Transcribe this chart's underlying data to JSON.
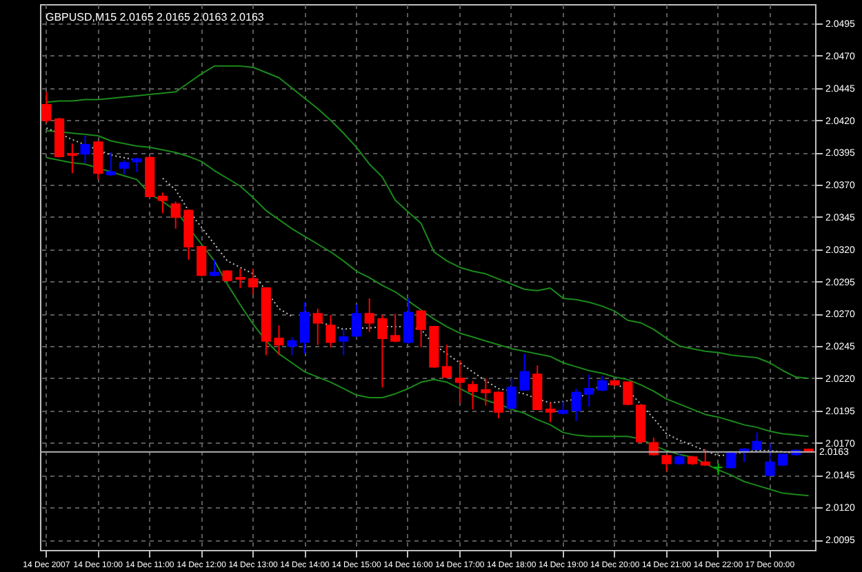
{
  "chart_data": {
    "type": "candlestick",
    "title": "GBPUSD,M15  2.0165 2.0165 2.0163 2.0163",
    "categories": [
      "14 Dec 2007",
      null,
      null,
      null,
      "14 Dec 10:00",
      null,
      null,
      null,
      "14 Dec 11:00",
      null,
      null,
      null,
      "14 Dec 12:00",
      null,
      null,
      null,
      "14 Dec 13:00",
      null,
      null,
      null,
      "14 Dec 14:00",
      null,
      null,
      null,
      "14 Dec 15:00",
      null,
      null,
      null,
      "14 Dec 16:00",
      null,
      null,
      null,
      "14 Dec 17:00",
      null,
      null,
      null,
      "14 Dec 18:00",
      null,
      null,
      null,
      "14 Dec 19:00",
      null,
      null,
      null,
      "14 Dec 20:00",
      null,
      null,
      null,
      "14 Dec 21:00",
      null,
      null,
      null,
      "14 Dec 22:00",
      null,
      null,
      null,
      "17 Dec 00:00",
      null,
      null,
      null
    ],
    "ohlc": [
      [
        2.0432,
        2.0442,
        2.0418,
        2.042
      ],
      [
        2.0421,
        2.0422,
        2.0391,
        2.0392
      ],
      [
        2.0394,
        2.0402,
        2.0379,
        2.0393
      ],
      [
        2.0394,
        2.0408,
        2.0387,
        2.0401
      ],
      [
        2.0403,
        2.0404,
        2.0374,
        2.0379
      ],
      [
        2.0378,
        2.0395,
        2.0377,
        2.038
      ],
      [
        2.0383,
        2.0389,
        2.0378,
        2.0387
      ],
      [
        2.0388,
        2.0391,
        2.038,
        2.039
      ],
      [
        2.0391,
        2.0392,
        2.036,
        2.0361
      ],
      [
        2.0361,
        2.0364,
        2.0348,
        2.0358
      ],
      [
        2.0355,
        2.0357,
        2.0336,
        2.0345
      ],
      [
        2.035,
        2.0351,
        2.0312,
        2.0322
      ],
      [
        2.0322,
        2.0323,
        2.0299,
        2.03
      ],
      [
        2.03,
        2.0312,
        2.0299,
        2.0302
      ],
      [
        2.0303,
        2.0304,
        2.0295,
        2.0296
      ],
      [
        2.0298,
        2.0305,
        2.029,
        2.0297
      ],
      [
        2.0297,
        2.0305,
        2.0285,
        2.0291
      ],
      [
        2.029,
        2.029,
        2.0238,
        2.0249
      ],
      [
        2.0251,
        2.0261,
        2.0238,
        2.0246
      ],
      [
        2.0245,
        2.0252,
        2.0238,
        2.0249
      ],
      [
        2.0248,
        2.0279,
        2.0239,
        2.0271
      ],
      [
        2.027,
        2.0274,
        2.0246,
        2.0263
      ],
      [
        2.0261,
        2.0269,
        2.0244,
        2.0248
      ],
      [
        2.0249,
        2.0258,
        2.0238,
        2.0252
      ],
      [
        2.0253,
        2.0277,
        2.0252,
        2.027
      ],
      [
        2.027,
        2.0282,
        2.0256,
        2.0263
      ],
      [
        2.0266,
        2.0269,
        2.0213,
        2.0251
      ],
      [
        2.0253,
        2.027,
        2.0248,
        2.0249
      ],
      [
        2.0248,
        2.0282,
        2.0247,
        2.0271
      ],
      [
        2.0272,
        2.0273,
        2.0244,
        2.0258
      ],
      [
        2.026,
        2.026,
        2.0228,
        2.0229
      ],
      [
        2.0229,
        2.0246,
        2.022,
        2.0221
      ],
      [
        2.022,
        2.0234,
        2.0201,
        2.0217
      ],
      [
        2.0215,
        2.0218,
        2.0196,
        2.021
      ],
      [
        2.0211,
        2.022,
        2.0199,
        2.0209
      ],
      [
        2.0209,
        2.021,
        2.0189,
        2.0194
      ],
      [
        2.0197,
        2.022,
        2.0196,
        2.0213
      ],
      [
        2.0211,
        2.0239,
        2.0211,
        2.0225
      ],
      [
        2.0223,
        2.023,
        2.0196,
        2.0196
      ],
      [
        2.0196,
        2.0201,
        2.0186,
        2.0194
      ],
      [
        2.0193,
        2.0202,
        2.0192,
        2.0195
      ],
      [
        2.0195,
        2.0212,
        2.0187,
        2.0209
      ],
      [
        2.0208,
        2.0223,
        2.0198,
        2.0212
      ],
      [
        2.0211,
        2.0222,
        2.021,
        2.0218
      ],
      [
        2.0218,
        2.0218,
        2.0214,
        2.0215
      ],
      [
        2.0217,
        2.0217,
        2.0199,
        2.02
      ],
      [
        2.0199,
        2.02,
        2.017,
        2.0171
      ],
      [
        2.017,
        2.0174,
        2.016,
        2.0161
      ],
      [
        2.016,
        2.0161,
        2.0148,
        2.0154
      ],
      [
        2.0154,
        2.0163,
        2.0153,
        2.0159
      ],
      [
        2.0159,
        2.016,
        2.0153,
        2.0154
      ],
      [
        2.0155,
        2.0165,
        2.0152,
        2.0153
      ],
      [
        2.0151,
        2.0154,
        2.0145,
        2.0151
      ],
      [
        2.0151,
        2.0163,
        2.015,
        2.0162
      ],
      [
        2.0163,
        2.0166,
        2.0155,
        2.0165
      ],
      [
        2.0165,
        2.0178,
        2.0164,
        2.0171
      ],
      [
        2.0145,
        2.017,
        2.0144,
        2.0155
      ],
      [
        2.0153,
        2.0161,
        2.0152,
        2.0161
      ],
      [
        2.0161,
        2.0165,
        2.016,
        2.0164
      ],
      [
        2.0165,
        2.0165,
        2.0163,
        2.0163
      ]
    ],
    "colors": [
      "#ff0000",
      "#ff0000",
      "#ff0000",
      "#0000ff",
      "#ff0000",
      "#0000ff",
      "#0000ff",
      "#0000ff",
      "#ff0000",
      "#ff0000",
      "#ff0000",
      "#ff0000",
      "#ff0000",
      "#0000ff",
      "#ff0000",
      "#ff0000",
      "#ff0000",
      "#ff0000",
      "#ff0000",
      "#0000ff",
      "#0000ff",
      "#ff0000",
      "#ff0000",
      "#0000ff",
      "#0000ff",
      "#ff0000",
      "#ff0000",
      "#ff0000",
      "#0000ff",
      "#ff0000",
      "#ff0000",
      "#ff0000",
      "#ff0000",
      "#ff0000",
      "#ff0000",
      "#ff0000",
      "#0000ff",
      "#0000ff",
      "#ff0000",
      "#ff0000",
      "#0000ff",
      "#0000ff",
      "#0000ff",
      "#0000ff",
      "#ff0000",
      "#ff0000",
      "#ff0000",
      "#ff0000",
      "#ff0000",
      "#0000ff",
      "#ff0000",
      "#ff0000",
      "#00c000",
      "#0000ff",
      "#0000ff",
      "#0000ff",
      "#0000ff",
      "#0000ff",
      "#0000ff",
      "#ff0000"
    ],
    "series": [
      {
        "type": "line",
        "color": "#1b8a1b",
        "line_style": "solid",
        "values": [
          2.0434,
          2.0435,
          2.0435,
          2.0436,
          2.0436,
          2.0437,
          2.0438,
          2.0439,
          2.044,
          2.0441,
          2.0442,
          2.0449,
          2.0456,
          2.0462,
          2.0462,
          2.0462,
          2.0461,
          2.0457,
          2.0453,
          2.0445,
          2.0437,
          2.0429,
          2.042,
          2.041,
          2.0399,
          2.0386,
          2.0376,
          2.0358,
          2.0349,
          2.034,
          2.0318,
          2.0311,
          2.0306,
          2.0303,
          2.0301,
          2.0297,
          2.0293,
          2.0289,
          2.0288,
          2.029,
          2.0282,
          2.0281,
          2.0279,
          2.0276,
          2.0272,
          2.0265,
          2.0263,
          2.0258,
          2.0251,
          2.0245,
          2.0243,
          2.0241,
          2.024,
          2.0238,
          2.0237,
          2.0236,
          2.0232,
          2.0226,
          2.0221,
          2.022
        ]
      },
      {
        "type": "line",
        "color": "#1b8a1b",
        "line_style": "solid",
        "values": [
          2.0412,
          2.0411,
          2.041,
          2.0409,
          2.0408,
          2.0404,
          2.0402,
          2.04,
          2.0399,
          2.0397,
          2.0395,
          2.0392,
          2.0388,
          2.0381,
          2.0375,
          2.0369,
          2.036,
          2.035,
          2.0343,
          2.0336,
          2.033,
          2.0324,
          2.0318,
          2.0311,
          2.0303,
          2.0298,
          2.0292,
          2.0287,
          2.028,
          2.0273,
          2.0266,
          2.026,
          2.0255,
          2.0252,
          2.0249,
          2.0246,
          2.0243,
          2.0241,
          2.0239,
          2.0237,
          2.0232,
          2.0229,
          2.0226,
          2.0224,
          2.0221,
          2.0219,
          2.0215,
          2.021,
          2.0204,
          2.02,
          2.0196,
          2.0192,
          2.019,
          2.0187,
          2.0184,
          2.0182,
          2.0179,
          2.0177,
          2.0176,
          2.0175
        ]
      },
      {
        "type": "line",
        "color": "#1b8a1b",
        "line_style": "solid",
        "values": [
          2.0391,
          2.0389,
          2.0387,
          2.0386,
          2.0383,
          2.038,
          2.0377,
          2.0374,
          2.0363,
          2.0357,
          2.035,
          2.0337,
          2.0324,
          2.0311,
          2.0293,
          2.0277,
          2.0262,
          2.0249,
          2.0239,
          2.0232,
          2.0225,
          2.0221,
          2.0217,
          2.0212,
          2.0207,
          2.0205,
          2.0205,
          2.0208,
          2.0212,
          2.0217,
          2.0219,
          2.0217,
          2.0212,
          2.0207,
          2.0203,
          2.02,
          2.0196,
          2.0193,
          2.0188,
          2.0184,
          2.0178,
          2.0176,
          2.0175,
          2.0175,
          2.0175,
          2.0175,
          2.0173,
          2.0168,
          2.0164,
          2.0161,
          2.0159,
          2.0154,
          2.0149,
          2.0145,
          2.014,
          2.0137,
          2.0134,
          2.0131,
          2.013,
          2.0129
        ]
      },
      {
        "type": "line",
        "color": "#c0c0c0",
        "line_style": "dotted",
        "values": [
          2.0414,
          2.041,
          2.0405,
          2.0401,
          2.0397,
          2.0393,
          2.0391,
          2.0389,
          null,
          2.0375,
          2.0366,
          2.035,
          2.0337,
          2.0324,
          2.0311,
          2.0306,
          2.0301,
          2.0288,
          2.0274,
          2.0268,
          null,
          2.0264,
          2.0261,
          2.0258,
          2.0259,
          2.0259,
          2.026,
          2.026,
          2.026,
          2.0258,
          2.0246,
          2.0239,
          2.0232,
          2.0225,
          2.0218,
          2.0212,
          2.021,
          2.0208,
          2.0204,
          2.0201,
          2.0202,
          2.0204,
          2.0209,
          2.0215,
          2.0216,
          2.0211,
          2.02,
          2.0189,
          2.0177,
          2.0172,
          2.0168,
          2.0164,
          2.016,
          2.0161,
          2.0163,
          2.0164,
          2.0164,
          2.0163,
          2.0162,
          2.0164
        ]
      }
    ],
    "ylim": [
      2.0087,
      2.051
    ],
    "yticks": [
      2.0095,
      {
        "value": 2.012,
        "label": "2.0120"
      },
      2.0145,
      {
        "value": 2.017,
        "label": "2.0170"
      },
      2.0195,
      {
        "value": 2.022,
        "label": "2.0220"
      },
      2.0245,
      {
        "value": 2.027,
        "label": "2.0270"
      },
      2.0295,
      {
        "value": 2.032,
        "label": "2.0320"
      },
      2.0345,
      {
        "value": 2.037,
        "label": "2.0370"
      },
      2.0395,
      {
        "value": 2.042,
        "label": "2.0420"
      },
      2.0445,
      {
        "value": 2.047,
        "label": "2.0470"
      },
      2.0495
    ],
    "ref_lines": [
      {
        "axis": "y",
        "value": 2.0163,
        "label": "2.0163",
        "color": "#b0b0b0"
      }
    ],
    "grid": true
  }
}
